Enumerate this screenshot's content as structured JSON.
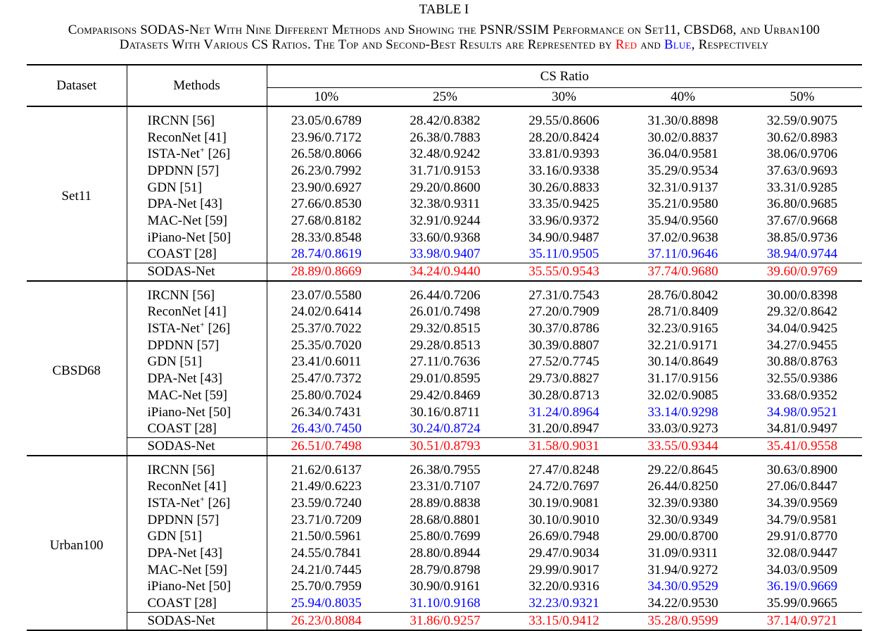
{
  "table_label": "TABLE I",
  "caption": {
    "line1": {
      "text": "Comparisons SODAS-Net With Nine Different Methods and Showing the PSNR/SSIM Performance on Set11, CBSD68, and Urban100"
    },
    "line2": {
      "prefix": "Datasets With Various CS Ratios. The Top and Second-Best Results are Represented by ",
      "red_word": "Red",
      "middle": " and ",
      "blue_word": "Blue",
      "suffix": ", Respectively"
    }
  },
  "colors": {
    "best": "#ff0000",
    "second": "#0000ff"
  },
  "headers": {
    "dataset": "Dataset",
    "methods": "Methods",
    "cs_ratio": "CS Ratio",
    "ratios": [
      "10%",
      "25%",
      "30%",
      "40%",
      "50%"
    ]
  },
  "groups": [
    {
      "dataset": "Set11",
      "rows": [
        {
          "method": "IRCNN [56]",
          "values": [
            "23.05/0.6789",
            "28.42/0.8382",
            "29.55/0.8606",
            "31.30/0.8898",
            "32.59/0.9075"
          ],
          "colors": [
            "",
            "",
            "",
            "",
            ""
          ]
        },
        {
          "method": "ReconNet [41]",
          "values": [
            "23.96/0.7172",
            "26.38/0.7883",
            "28.20/0.8424",
            "30.02/0.8837",
            "30.62/0.8983"
          ],
          "colors": [
            "",
            "",
            "",
            "",
            ""
          ]
        },
        {
          "method": "ISTA-Net+ [26]",
          "method_base": "ISTA-Net",
          "method_sup": "+",
          "method_ref": " [26]",
          "values": [
            "26.58/0.8066",
            "32.48/0.9242",
            "33.81/0.9393",
            "36.04/0.9581",
            "38.06/0.9706"
          ],
          "colors": [
            "",
            "",
            "",
            "",
            ""
          ]
        },
        {
          "method": "DPDNN [57]",
          "values": [
            "26.23/0.7992",
            "31.71/0.9153",
            "33.16/0.9338",
            "35.29/0.9534",
            "37.63/0.9693"
          ],
          "colors": [
            "",
            "",
            "",
            "",
            ""
          ]
        },
        {
          "method": "GDN [51]",
          "values": [
            "23.90/0.6927",
            "29.20/0.8600",
            "30.26/0.8833",
            "32.31/0.9137",
            "33.31/0.9285"
          ],
          "colors": [
            "",
            "",
            "",
            "",
            ""
          ]
        },
        {
          "method": "DPA-Net [43]",
          "values": [
            "27.66/0.8530",
            "32.38/0.9311",
            "33.35/0.9425",
            "35.21/0.9580",
            "36.80/0.9685"
          ],
          "colors": [
            "",
            "",
            "",
            "",
            ""
          ]
        },
        {
          "method": "MAC-Net [59]",
          "values": [
            "27.68/0.8182",
            "32.91/0.9244",
            "33.96/0.9372",
            "35.94/0.9560",
            "37.67/0.9668"
          ],
          "colors": [
            "",
            "",
            "",
            "",
            ""
          ]
        },
        {
          "method": "iPiano-Net [50]",
          "values": [
            "28.33/0.8548",
            "33.60/0.9368",
            "34.90/0.9487",
            "37.02/0.9638",
            "38.85/0.9736"
          ],
          "colors": [
            "",
            "",
            "",
            "",
            ""
          ]
        },
        {
          "method": "COAST [28]",
          "values": [
            "28.74/0.8619",
            "33.98/0.9407",
            "35.11/0.9505",
            "37.11/0.9646",
            "38.94/0.9744"
          ],
          "colors": [
            "blue",
            "blue",
            "blue",
            "blue",
            "blue"
          ]
        },
        {
          "method": "SODAS-Net",
          "values": [
            "28.89/0.8669",
            "34.24/0.9440",
            "35.55/0.9543",
            "37.74/0.9680",
            "39.60/0.9769"
          ],
          "colors": [
            "red",
            "red",
            "red",
            "red",
            "red"
          ]
        }
      ]
    },
    {
      "dataset": "CBSD68",
      "rows": [
        {
          "method": "IRCNN [56]",
          "values": [
            "23.07/0.5580",
            "26.44/0.7206",
            "27.31/0.7543",
            "28.76/0.8042",
            "30.00/0.8398"
          ],
          "colors": [
            "",
            "",
            "",
            "",
            ""
          ]
        },
        {
          "method": "ReconNet [41]",
          "values": [
            "24.02/0.6414",
            "26.01/0.7498",
            "27.20/0.7909",
            "28.71/0.8409",
            "29.32/0.8642"
          ],
          "colors": [
            "",
            "",
            "",
            "",
            ""
          ]
        },
        {
          "method": "ISTA-Net+ [26]",
          "method_base": "ISTA-Net",
          "method_sup": "+",
          "method_ref": " [26]",
          "values": [
            "25.37/0.7022",
            "29.32/0.8515",
            "30.37/0.8786",
            "32.23/0.9165",
            "34.04/0.9425"
          ],
          "colors": [
            "",
            "",
            "",
            "",
            ""
          ]
        },
        {
          "method": "DPDNN [57]",
          "values": [
            "25.35/0.7020",
            "29.28/0.8513",
            "30.39/0.8807",
            "32.21/0.9171",
            "34.27/0.9455"
          ],
          "colors": [
            "",
            "",
            "",
            "",
            ""
          ]
        },
        {
          "method": "GDN [51]",
          "values": [
            "23.41/0.6011",
            "27.11/0.7636",
            "27.52/0.7745",
            "30.14/0.8649",
            "30.88/0.8763"
          ],
          "colors": [
            "",
            "",
            "",
            "",
            ""
          ]
        },
        {
          "method": "DPA-Net [43]",
          "values": [
            "25.47/0.7372",
            "29.01/0.8595",
            "29.73/0.8827",
            "31.17/0.9156",
            "32.55/0.9386"
          ],
          "colors": [
            "",
            "",
            "",
            "",
            ""
          ]
        },
        {
          "method": "MAC-Net [59]",
          "values": [
            "25.80/0.7024",
            "29.42/0.8469",
            "30.28/0.8713",
            "32.02/0.9085",
            "33.68/0.9352"
          ],
          "colors": [
            "",
            "",
            "",
            "",
            ""
          ]
        },
        {
          "method": "iPiano-Net [50]",
          "values": [
            "26.34/0.7431",
            "30.16/0.8711",
            "31.24/0.8964",
            "33.14/0.9298",
            "34.98/0.9521"
          ],
          "colors": [
            "",
            "",
            "blue",
            "blue",
            "blue"
          ]
        },
        {
          "method": "COAST [28]",
          "values": [
            "26.43/0.7450",
            "30.24/0.8724",
            "31.20/0.8947",
            "33.03/0.9273",
            "34.81/0.9497"
          ],
          "colors": [
            "blue",
            "blue",
            "",
            "",
            ""
          ]
        },
        {
          "method": "SODAS-Net",
          "values": [
            "26.51/0.7498",
            "30.51/0.8793",
            "31.58/0.9031",
            "33.55/0.9344",
            "35.41/0.9558"
          ],
          "colors": [
            "red",
            "red",
            "red",
            "red",
            "red"
          ]
        }
      ]
    },
    {
      "dataset": "Urban100",
      "rows": [
        {
          "method": "IRCNN [56]",
          "values": [
            "21.62/0.6137",
            "26.38/0.7955",
            "27.47/0.8248",
            "29.22/0.8645",
            "30.63/0.8900"
          ],
          "colors": [
            "",
            "",
            "",
            "",
            ""
          ]
        },
        {
          "method": "ReconNet [41]",
          "values": [
            "21.49/0.6223",
            "23.31/0.7107",
            "24.72/0.7697",
            "26.44/0.8250",
            "27.06/0.8447"
          ],
          "colors": [
            "",
            "",
            "",
            "",
            ""
          ]
        },
        {
          "method": "ISTA-Net+ [26]",
          "method_base": "ISTA-Net",
          "method_sup": "+",
          "method_ref": " [26]",
          "values": [
            "23.59/0.7240",
            "28.89/0.8838",
            "30.19/0.9081",
            "32.39/0.9380",
            "34.39/0.9569"
          ],
          "colors": [
            "",
            "",
            "",
            "",
            ""
          ]
        },
        {
          "method": "DPDNN [57]",
          "values": [
            "23.71/0.7209",
            "28.68/0.8801",
            "30.10/0.9010",
            "32.30/0.9349",
            "34.79/0.9581"
          ],
          "colors": [
            "",
            "",
            "",
            "",
            ""
          ]
        },
        {
          "method": "GDN [51]",
          "values": [
            "21.50/0.5961",
            "25.80/0.7699",
            "26.69/0.7948",
            "29.00/0.8700",
            "29.91/0.8770"
          ],
          "colors": [
            "",
            "",
            "",
            "",
            ""
          ]
        },
        {
          "method": "DPA-Net [43]",
          "values": [
            "24.55/0.7841",
            "28.80/0.8944",
            "29.47/0.9034",
            "31.09/0.9311",
            "32.08/0.9447"
          ],
          "colors": [
            "",
            "",
            "",
            "",
            ""
          ]
        },
        {
          "method": "MAC-Net [59]",
          "values": [
            "24.21/0.7445",
            "28.79/0.8798",
            "29.99/0.9017",
            "31.94/0.9272",
            "34.03/0.9509"
          ],
          "colors": [
            "",
            "",
            "",
            "",
            ""
          ]
        },
        {
          "method": "iPiano-Net [50]",
          "values": [
            "25.70/0.7959",
            "30.90/0.9161",
            "32.20/0.9316",
            "34.30/0.9529",
            "36.19/0.9669"
          ],
          "colors": [
            "",
            "",
            "",
            "blue",
            "blue"
          ]
        },
        {
          "method": "COAST [28]",
          "values": [
            "25.94/0.8035",
            "31.10/0.9168",
            "32.23/0.9321",
            "34.22/0.9530",
            "35.99/0.9665"
          ],
          "colors": [
            "blue",
            "blue",
            "blue",
            "",
            ""
          ]
        },
        {
          "method": "SODAS-Net",
          "values": [
            "26.23/0.8084",
            "31.86/0.9257",
            "33.15/0.9412",
            "35.28/0.9599",
            "37.14/0.9721"
          ],
          "colors": [
            "red",
            "red",
            "red",
            "red",
            "red"
          ]
        }
      ]
    }
  ]
}
